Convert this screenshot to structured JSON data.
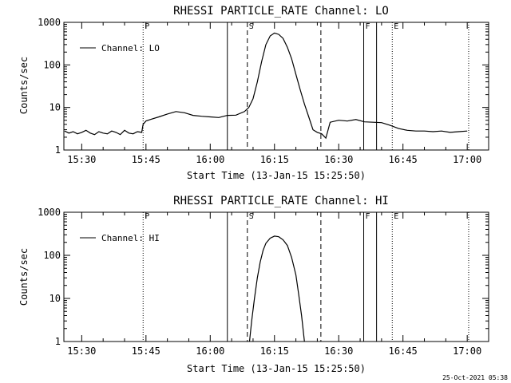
{
  "timestamp": "25-Oct-2021 05:38",
  "chart_data": [
    {
      "type": "line",
      "title": "RHESSI PARTICLE_RATE Channel: LO",
      "xlabel": "Start Time (13-Jan-15 15:25:50)",
      "ylabel": "Counts/sec",
      "yscale": "log",
      "ylim": [
        1,
        1000
      ],
      "xlim": [
        "15:25:50",
        "17:05:00"
      ],
      "ytick_labels": [
        "1",
        "10",
        "100",
        "1000"
      ],
      "xtick_labels": [
        "15:30",
        "15:45",
        "16:00",
        "16:15",
        "16:30",
        "16:45",
        "17:00"
      ],
      "legend": {
        "entry": "Channel: LO",
        "placement": "top-left"
      },
      "markers": [
        {
          "label": "P",
          "time": "15:44:20",
          "style": "dotted"
        },
        {
          "label": "",
          "time": "16:04:00",
          "style": "solid"
        },
        {
          "label": "S",
          "time": "16:08:40",
          "style": "dashed"
        },
        {
          "label": "",
          "time": "16:25:50",
          "style": "dashed"
        },
        {
          "label": "F",
          "time": "16:35:50",
          "style": "solid"
        },
        {
          "label": "",
          "time": "16:38:50",
          "style": "solid"
        },
        {
          "label": "E",
          "time": "16:42:30",
          "style": "dotted"
        },
        {
          "label": "",
          "time": "17:00:20",
          "style": "dotted"
        }
      ],
      "series": [
        {
          "x": [
            "15:26:00",
            "15:27:00",
            "15:28:00",
            "15:29:00",
            "15:30:00",
            "15:31:00",
            "15:32:00",
            "15:33:00",
            "15:34:00",
            "15:35:00",
            "15:36:00",
            "15:37:00",
            "15:38:00",
            "15:39:00",
            "15:40:00",
            "15:41:00",
            "15:42:00",
            "15:43:00",
            "15:44:00",
            "15:44:20",
            "15:45:00",
            "15:46:00",
            "15:48:00",
            "15:50:00",
            "15:52:00",
            "15:54:00",
            "15:56:00",
            "15:58:00",
            "16:00:00",
            "16:02:00",
            "16:04:00",
            "16:06:00",
            "16:08:00",
            "16:09:00",
            "16:10:00",
            "16:11:00",
            "16:12:00",
            "16:13:00",
            "16:14:00",
            "16:15:00",
            "16:16:00",
            "16:17:00",
            "16:18:00",
            "16:19:00",
            "16:20:00",
            "16:21:00",
            "16:22:00",
            "16:23:00",
            "16:24:00",
            "16:25:00",
            "16:26:00",
            "16:27:00",
            "16:28:00",
            "16:30:00",
            "16:32:00",
            "16:34:00",
            "16:36:00",
            "16:38:00",
            "16:40:00",
            "16:42:00",
            "16:44:00",
            "16:46:00",
            "16:48:00",
            "16:50:00",
            "16:52:00",
            "16:54:00",
            "16:56:00",
            "16:58:00",
            "17:00:00"
          ],
          "values": [
            2.8,
            2.5,
            2.7,
            2.4,
            2.6,
            2.9,
            2.5,
            2.3,
            2.7,
            2.5,
            2.4,
            2.8,
            2.6,
            2.3,
            2.9,
            2.5,
            2.4,
            2.7,
            2.6,
            4,
            4.8,
            5.2,
            6,
            7,
            8,
            7.5,
            6.5,
            6.2,
            6,
            5.8,
            6.5,
            6.6,
            8,
            10,
            16,
            40,
            120,
            300,
            480,
            560,
            520,
            420,
            260,
            140,
            60,
            26,
            12,
            6,
            3,
            2.6,
            2.4,
            1.9,
            4.5,
            5,
            4.8,
            5.2,
            4.6,
            4.5,
            4.4,
            3.8,
            3.2,
            2.9,
            2.8,
            2.8,
            2.7,
            2.8,
            2.6,
            2.7,
            2.8
          ]
        }
      ]
    },
    {
      "type": "line",
      "title": "RHESSI PARTICLE_RATE Channel: HI",
      "xlabel": "Start Time (13-Jan-15 15:25:50)",
      "ylabel": "Counts/sec",
      "yscale": "log",
      "ylim": [
        1,
        1000
      ],
      "xlim": [
        "15:25:50",
        "17:05:00"
      ],
      "ytick_labels": [
        "1",
        "10",
        "100",
        "1000"
      ],
      "xtick_labels": [
        "15:30",
        "15:45",
        "16:00",
        "16:15",
        "16:30",
        "16:45",
        "17:00"
      ],
      "legend": {
        "entry": "Channel: HI",
        "placement": "top-left"
      },
      "markers": [
        {
          "label": "P",
          "time": "15:44:20",
          "style": "dotted"
        },
        {
          "label": "",
          "time": "16:04:00",
          "style": "solid"
        },
        {
          "label": "S",
          "time": "16:08:40",
          "style": "dashed"
        },
        {
          "label": "",
          "time": "16:25:50",
          "style": "dashed"
        },
        {
          "label": "F",
          "time": "16:35:50",
          "style": "solid"
        },
        {
          "label": "",
          "time": "16:38:50",
          "style": "solid"
        },
        {
          "label": "E",
          "time": "16:42:30",
          "style": "dotted"
        },
        {
          "label": "",
          "time": "17:00:20",
          "style": "dotted"
        }
      ],
      "series": [
        {
          "x": [
            "16:09:10",
            "16:09:40",
            "16:10:20",
            "16:11:00",
            "16:11:40",
            "16:12:20",
            "16:13:00",
            "16:14:00",
            "16:15:00",
            "16:16:00",
            "16:17:00",
            "16:18:00",
            "16:19:00",
            "16:20:00",
            "16:20:40",
            "16:21:20",
            "16:22:00"
          ],
          "values": [
            1,
            3,
            10,
            30,
            70,
            130,
            190,
            250,
            280,
            270,
            230,
            170,
            90,
            35,
            12,
            4,
            1
          ]
        }
      ]
    }
  ]
}
